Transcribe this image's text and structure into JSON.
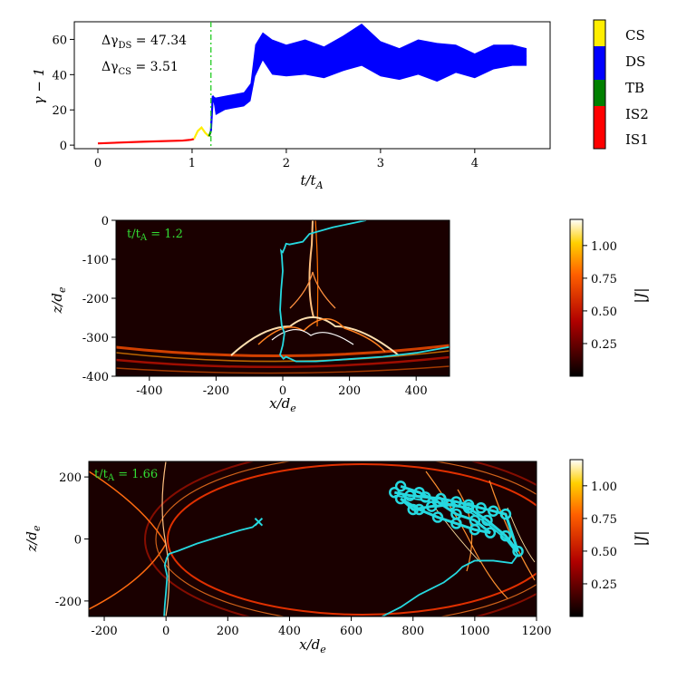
{
  "chart_data": [
    {
      "type": "line",
      "panel": "top",
      "xlabel": "t/t_A",
      "ylabel": "γ − 1",
      "xlim": [
        -0.25,
        4.8
      ],
      "ylim": [
        -2,
        70
      ],
      "xticks": [
        "0",
        "1",
        "2",
        "3",
        "4"
      ],
      "yticks": [
        "0",
        "20",
        "40",
        "60"
      ],
      "annotations": [
        "Δγ_DS = 47.34",
        "Δγ_CS = 3.51"
      ],
      "vline_x": 1.2,
      "vline_color": "#22cc22",
      "series": [
        {
          "name": "IS1",
          "color": "#ff0000",
          "x": [
            0,
            0.5,
            0.9,
            0.98
          ],
          "y": [
            1.0,
            2.0,
            2.6,
            3.0
          ]
        },
        {
          "name": "IS2",
          "color": "#ff0000",
          "x": [
            0.98,
            1.02
          ],
          "y": [
            3.0,
            3.5
          ]
        },
        {
          "name": "CS",
          "color": "#ffee00",
          "x": [
            1.02,
            1.06,
            1.1,
            1.14,
            1.18
          ],
          "y": [
            3.5,
            8.0,
            10.0,
            7.0,
            5.0
          ]
        },
        {
          "name": "TB",
          "color": "#008000",
          "x": [
            1.18,
            1.2
          ],
          "y": [
            5.0,
            8.0
          ]
        },
        {
          "name": "DS",
          "color": "#0000ff",
          "x": [
            1.2,
            1.22,
            1.25,
            1.35,
            1.55,
            1.62,
            1.67,
            1.75,
            1.85,
            2.0,
            2.2,
            2.4,
            2.6,
            2.8,
            3.0,
            3.2,
            3.4,
            3.6,
            3.8,
            4.0,
            4.2,
            4.4,
            4.55
          ],
          "y": [
            8.0,
            28.0,
            22.0,
            24.0,
            26.0,
            30.0,
            48.0,
            56.0,
            50.0,
            48.0,
            50.0,
            47.0,
            52.0,
            57.0,
            49.0,
            46.0,
            50.0,
            47.0,
            49.0,
            45.0,
            50.0,
            51.0,
            50.0
          ],
          "band": [
            0,
            0,
            5,
            4,
            4,
            5,
            9,
            8,
            10,
            9,
            10,
            9,
            10,
            12,
            10,
            9,
            10,
            11,
            8,
            7,
            7,
            6,
            5
          ]
        }
      ],
      "legend": [
        "CS",
        "DS",
        "TB",
        "IS2",
        "IS1"
      ],
      "legend_colors": [
        "#ffee00",
        "#0000ff",
        "#008000",
        "#ff0000",
        "#ff0000"
      ]
    },
    {
      "type": "heatmap",
      "panel": "middle",
      "annotation": "t/t_A = 1.2",
      "xlabel": "x/d_e",
      "ylabel": "z/d_e",
      "xlim": [
        -500,
        500
      ],
      "ylim": [
        -400,
        0
      ],
      "xticks": [
        "-400",
        "-200",
        "0",
        "200",
        "400"
      ],
      "yticks": [
        "0",
        "-100",
        "-200",
        "-300",
        "-400"
      ],
      "colorbar_label": "|J|",
      "colorbar_ticks": [
        "0.25",
        "0.50",
        "0.75",
        "1.00"
      ],
      "colorbar_range": [
        0,
        1.2
      ],
      "trajectory": {
        "color": "#26d9e0",
        "x": [
          250,
          150,
          80,
          60,
          20,
          10,
          5,
          0,
          -5,
          -3,
          0,
          -5,
          -8,
          -3,
          5,
          0,
          -8,
          2,
          10,
          40,
          100,
          200,
          300,
          400,
          500
        ],
        "z": [
          0,
          -18,
          -35,
          -55,
          -62,
          -60,
          -72,
          -82,
          -78,
          -90,
          -130,
          -180,
          -230,
          -270,
          -290,
          -320,
          -345,
          -355,
          -350,
          -362,
          -362,
          -356,
          -350,
          -340,
          -325
        ]
      }
    },
    {
      "type": "heatmap",
      "panel": "bottom",
      "annotation": "t/t_A = 1.66",
      "xlabel": "x/d_e",
      "ylabel": "z/d_e",
      "xlim": [
        -250,
        1200
      ],
      "ylim": [
        -250,
        250
      ],
      "xticks": [
        "-200",
        "0",
        "200",
        "400",
        "600",
        "800",
        "1000",
        "1200"
      ],
      "yticks": [
        "200",
        "0",
        "-200"
      ],
      "colorbar_label": "|J|",
      "colorbar_ticks": [
        "0.25",
        "0.50",
        "0.75",
        "1.00"
      ],
      "colorbar_range": [
        0,
        1.2
      ],
      "trajectory_early": {
        "color": "#26d9e0",
        "x": [
          300,
          280,
          240,
          180,
          100,
          40,
          10,
          2,
          -4,
          4,
          0,
          -4,
          -6
        ],
        "z": [
          55,
          38,
          28,
          10,
          -15,
          -38,
          -48,
          -62,
          -85,
          -120,
          -170,
          -215,
          -250
        ]
      },
      "trajectory_late": {
        "color": "#26d9e0",
        "x": [
          700,
          760,
          820,
          900,
          940,
          960,
          1000,
          1060,
          1120,
          1140,
          1100,
          1040,
          980,
          940,
          900,
          860,
          800,
          740
        ],
        "z": [
          -250,
          -220,
          -180,
          -140,
          -110,
          -90,
          -70,
          -70,
          -78,
          -50,
          0,
          50,
          90,
          110,
          115,
          120,
          130,
          140
        ]
      },
      "loops": {
        "color": "#26d9e0",
        "x": [
          740,
          790,
          840,
          890,
          940,
          980,
          1020,
          1060,
          1100,
          1140,
          1100,
          1040,
          980,
          920,
          860,
          800,
          760,
          820,
          880,
          940,
          1000,
          1050,
          1000,
          940,
          880,
          820,
          760
        ],
        "z": [
          150,
          140,
          135,
          130,
          120,
          110,
          100,
          90,
          80,
          -40,
          10,
          60,
          100,
          110,
          105,
          95,
          130,
          95,
          70,
          50,
          30,
          20,
          60,
          80,
          120,
          150,
          170
        ]
      }
    }
  ]
}
